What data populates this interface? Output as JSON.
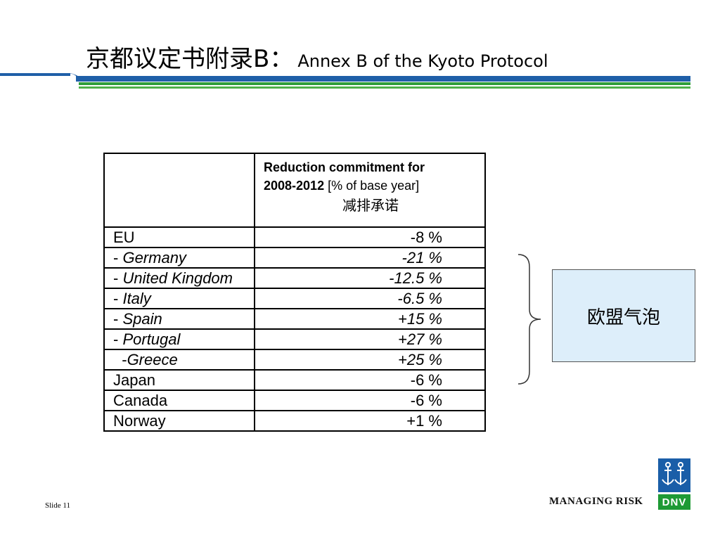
{
  "title": {
    "cn": "京都议定书附录",
    "letter": "B：",
    "en": "Annex B of the Kyoto Protocol"
  },
  "table": {
    "header": {
      "bold_line": "Reduction commitment for",
      "bold_years": "2008-2012",
      "unit": " [% of base year]",
      "cn": "减排承诺"
    },
    "rows": [
      {
        "country": "EU",
        "value": "-8 %",
        "italic": false,
        "prefix": ""
      },
      {
        "country": "Germany",
        "value": "-21 %",
        "italic": true,
        "prefix": "- "
      },
      {
        "country": "United Kingdom",
        "value": "-12.5 %",
        "italic": true,
        "prefix": "- "
      },
      {
        "country": "Italy",
        "value": "-6.5 %",
        "italic": true,
        "prefix": "- "
      },
      {
        "country": "Spain",
        "value": "+15 %",
        "italic": true,
        "prefix": "- "
      },
      {
        "country": "Portugal",
        "value": "+27 %",
        "italic": true,
        "prefix": "- "
      },
      {
        "country": "Greece",
        "value": "+25 %",
        "italic": true,
        "prefix": "  -"
      },
      {
        "country": "Japan",
        "value": "-6 %",
        "italic": false,
        "prefix": ""
      },
      {
        "country": "Canada",
        "value": "-6 %",
        "italic": false,
        "prefix": ""
      },
      {
        "country": "Norway",
        "value": "+1 %",
        "italic": false,
        "prefix": ""
      }
    ]
  },
  "eu_bubble_label": "欧盟气泡",
  "footer": {
    "slide": "Slide 11",
    "tagline": "MANAGING RISK",
    "logo_text": "DNV"
  },
  "colors": {
    "rule_blue": "#1f5fa8",
    "rule_green": "#2f9e3a",
    "bubble_fill": "#ddeefa",
    "logo_blue": "#1a5ea8",
    "logo_green": "#1e9a35"
  },
  "icons": [
    "brace-icon",
    "dnv-logo-icon"
  ]
}
